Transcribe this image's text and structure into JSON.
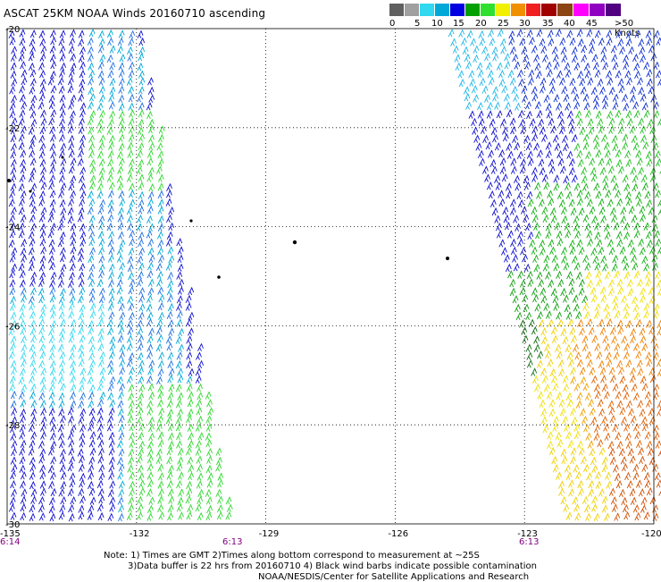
{
  "title": "ASCAT 25KM NOAA Winds 20160710 ascending",
  "legend": {
    "labels": [
      "0",
      "5",
      "10",
      "15",
      "20",
      "25",
      "30",
      "35",
      "40",
      "45",
      ">50 Knots"
    ],
    "colors": [
      "#606060",
      "#a0a0a0",
      "#30d8f0",
      "#00a8d8",
      "#0000e0",
      "#00a000",
      "#30e030",
      "#f0f000",
      "#f09000",
      "#f02020",
      "#a00000",
      "#8b4513",
      "#ff00ff",
      "#9000c0",
      "#500080"
    ]
  },
  "map": {
    "lat_labels": [
      "-20",
      "-22",
      "-24",
      "-26",
      "-28",
      "-30"
    ],
    "lon_labels": [
      "-135",
      "-132",
      "-129",
      "-126",
      "-123",
      "-120"
    ],
    "time_labels": [
      "6:14",
      "6:13",
      "6:13"
    ],
    "time_color": "#800080",
    "grid": "dotted"
  },
  "notes": {
    "line1": "Note: 1) Times are GMT 2)Times along bottom correspond to measurement at ~25S",
    "line2": "3)Data buffer is 22 hrs from 20160710 4) Black wind barbs indicate possible contamination",
    "line3": "NOAA/NESDIS/Center for Satellite Applications and Research"
  }
}
